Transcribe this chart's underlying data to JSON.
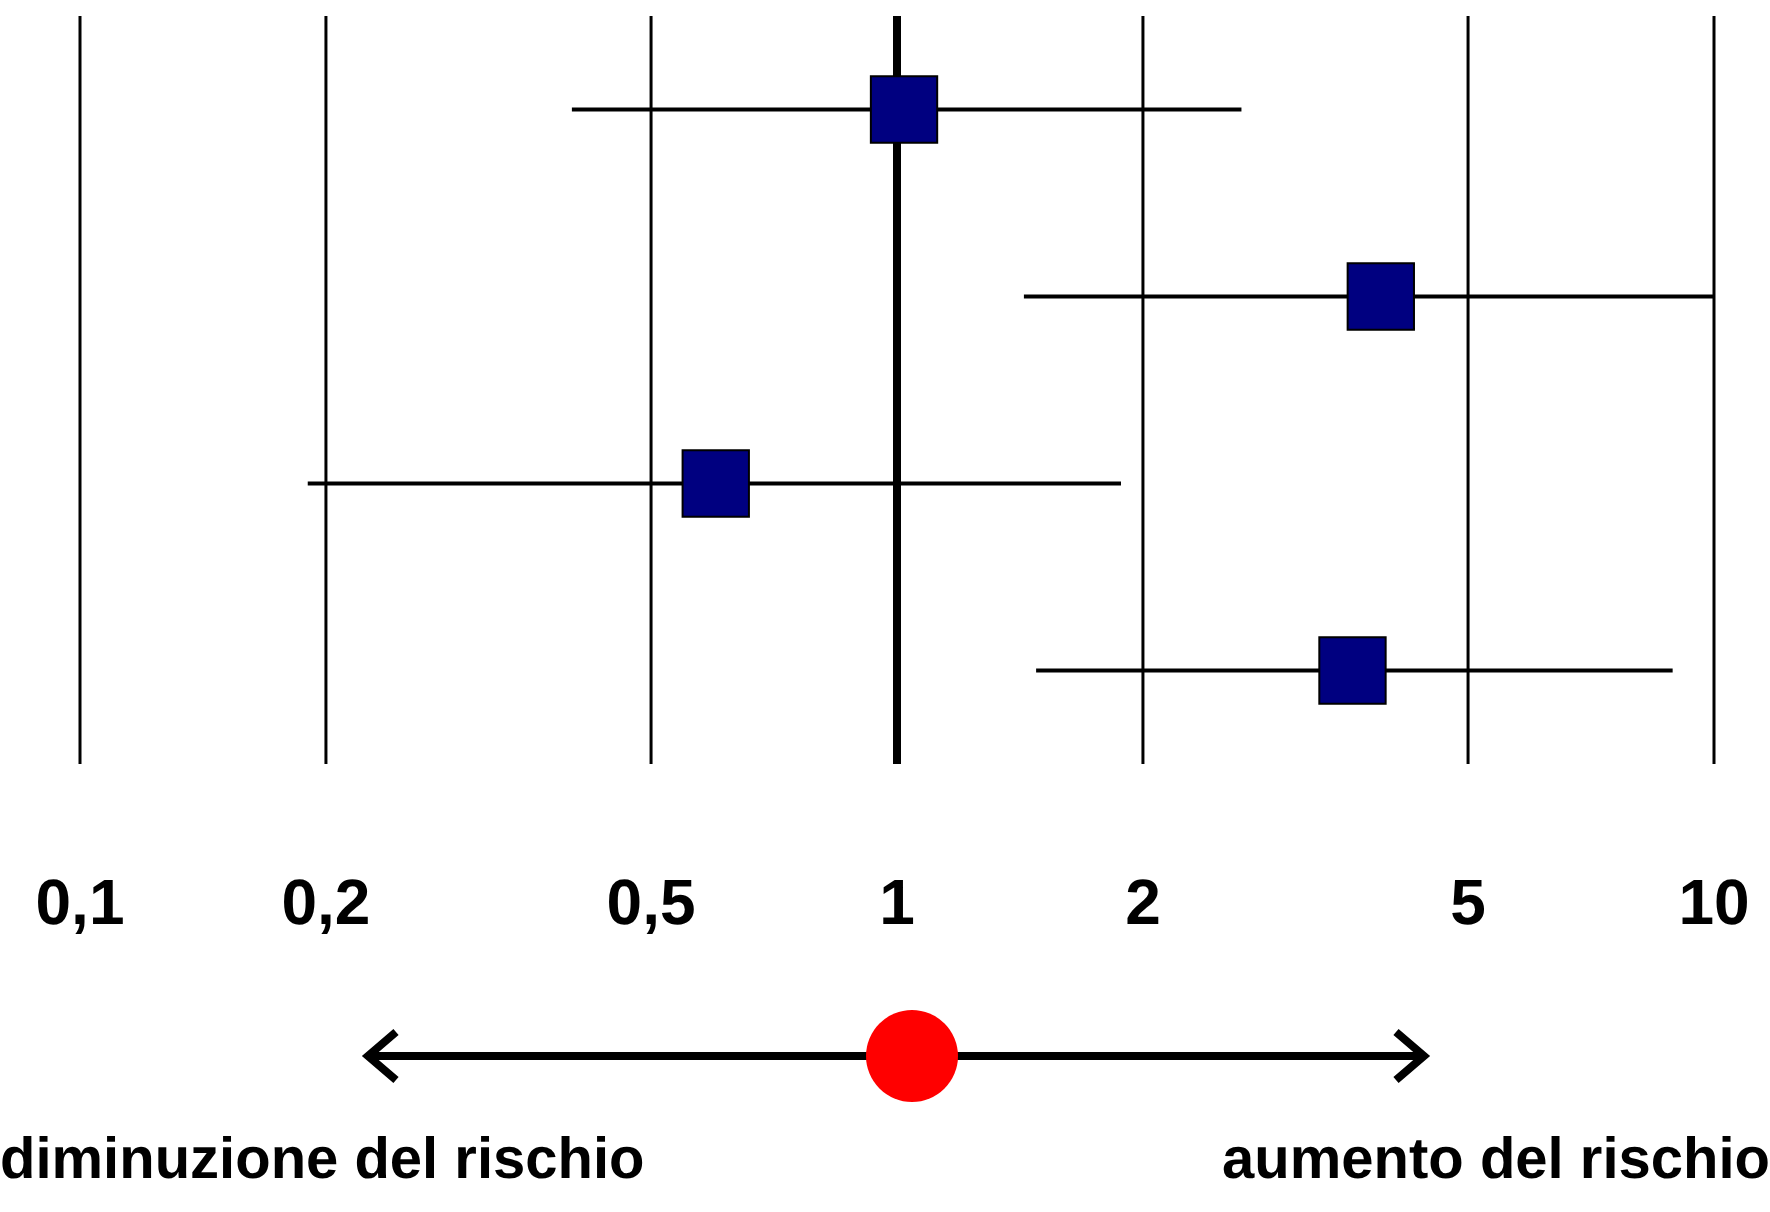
{
  "chart_data": {
    "type": "scatter",
    "orientation": "horizontal",
    "marker": "square",
    "log": "x",
    "grid": "x",
    "categories": [
      null,
      null,
      null,
      null
    ],
    "series": [
      {
        "color": "#000080",
        "values": [
          1.02,
          3.91,
          0.6,
          3.61
        ],
        "errors": [
          [
            0.4,
            2.64
          ],
          [
            1.43,
            10
          ],
          [
            0.19,
            1.88
          ],
          [
            1.48,
            8.9
          ]
        ]
      }
    ],
    "xlim": [
      0.1,
      10
    ],
    "xticks": [
      {
        "value": 0.1,
        "label": "0,1"
      },
      {
        "value": 0.2,
        "label": "0,2"
      },
      {
        "value": 0.5,
        "label": "0,5"
      },
      1,
      2,
      5,
      10
    ],
    "ref_lines": [
      {
        "axis": "x",
        "value": 1,
        "color": "#000000"
      }
    ],
    "annotations": [
      "diminuzione del rischio",
      "aumento del rischio"
    ]
  }
}
